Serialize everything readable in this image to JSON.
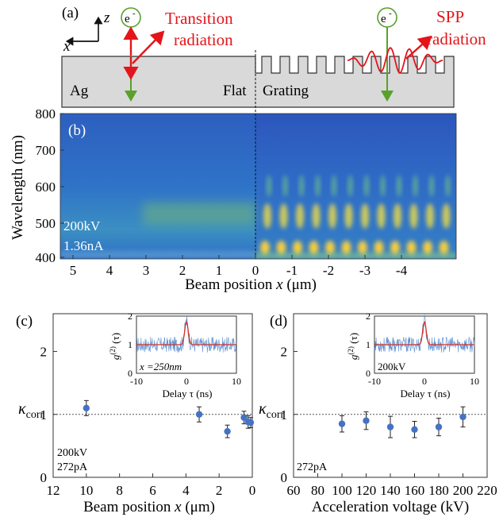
{
  "panel_a": {
    "label": "(a)",
    "axis_z": "z",
    "axis_x": "x",
    "electron": "e",
    "electron_sup": "-",
    "transition_line1": "Transition",
    "transition_line2": "radiation",
    "spp_line1": "SPP",
    "spp_line2": "radiation",
    "material": "Ag",
    "flat": "Flat",
    "grating": "Grating",
    "colors": {
      "substrate": "#d9d9d9",
      "electron": "#5aa02c",
      "radiation": "#e3151a"
    }
  },
  "panel_b": {
    "label": "(b)",
    "ylabel": "Wavelength (nm)",
    "xlabel_main": "Beam position ",
    "xlabel_var": "x",
    "xlabel_unit": " (μm)",
    "annot_voltage": "200kV",
    "annot_current": "1.36nA",
    "yticks": [
      "800",
      "700",
      "600",
      "500",
      "400"
    ],
    "xticks": [
      "5",
      "4",
      "3",
      "2",
      "1",
      "0",
      "-1",
      "-2",
      "-3",
      "-4"
    ]
  },
  "panel_c": {
    "label": "(c)",
    "xlabel_main": "Beam position ",
    "xlabel_var": "x",
    "xlabel_unit": " (μm)",
    "ylabel_main": "κ",
    "ylabel_sub": "corr",
    "annot_voltage": "200kV",
    "annot_current": "272pA",
    "inset_ylabel": "g",
    "inset_ylabel_sup": "(2)",
    "inset_ylabel_arg": " (τ)",
    "inset_xlabel": "Delay τ (ns)",
    "inset_annot": "x =250nm",
    "inset_xticks": [
      "-10",
      "0",
      "10"
    ],
    "inset_yticks": [
      "2",
      "1",
      "0"
    ]
  },
  "panel_d": {
    "label": "(d)",
    "xlabel": "Acceleration voltage (kV)",
    "ylabel_main": "κ",
    "ylabel_sub": "corr",
    "annot_current": "272pA",
    "inset_ylabel": "g",
    "inset_ylabel_sup": "(2)",
    "inset_ylabel_arg": " (τ)",
    "inset_xlabel": "Delay τ (ns)",
    "inset_annot": "200kV",
    "inset_xticks": [
      "-10",
      "0",
      "10"
    ],
    "inset_yticks": [
      "2",
      "1",
      "0"
    ]
  },
  "chart_data": [
    {
      "type": "scatter",
      "panel": "c",
      "x": [
        10,
        3.2,
        1.5,
        0.5,
        0.25,
        0.1
      ],
      "y": [
        1.1,
        1.0,
        0.73,
        0.95,
        0.88,
        0.87
      ],
      "yerr": [
        0.12,
        0.12,
        0.1,
        0.1,
        0.1,
        0.08
      ],
      "xlim": [
        12,
        0
      ],
      "ylim": [
        0,
        2.6
      ],
      "xticks": [
        12,
        10,
        8,
        6,
        4,
        2,
        0
      ],
      "yticks": [
        0,
        1,
        2
      ],
      "reference_line": 1,
      "color": "#4472c4"
    },
    {
      "type": "scatter",
      "panel": "d",
      "x": [
        100,
        120,
        140,
        160,
        180,
        200
      ],
      "y": [
        0.85,
        0.9,
        0.8,
        0.76,
        0.8,
        0.96
      ],
      "yerr": [
        0.13,
        0.14,
        0.17,
        0.13,
        0.14,
        0.16
      ],
      "xlim": [
        60,
        220
      ],
      "ylim": [
        0,
        2.6
      ],
      "xticks": [
        60,
        80,
        100,
        120,
        140,
        160,
        180,
        200,
        220
      ],
      "yticks": [
        0,
        1,
        2
      ],
      "reference_line": 1,
      "color": "#4472c4"
    }
  ]
}
